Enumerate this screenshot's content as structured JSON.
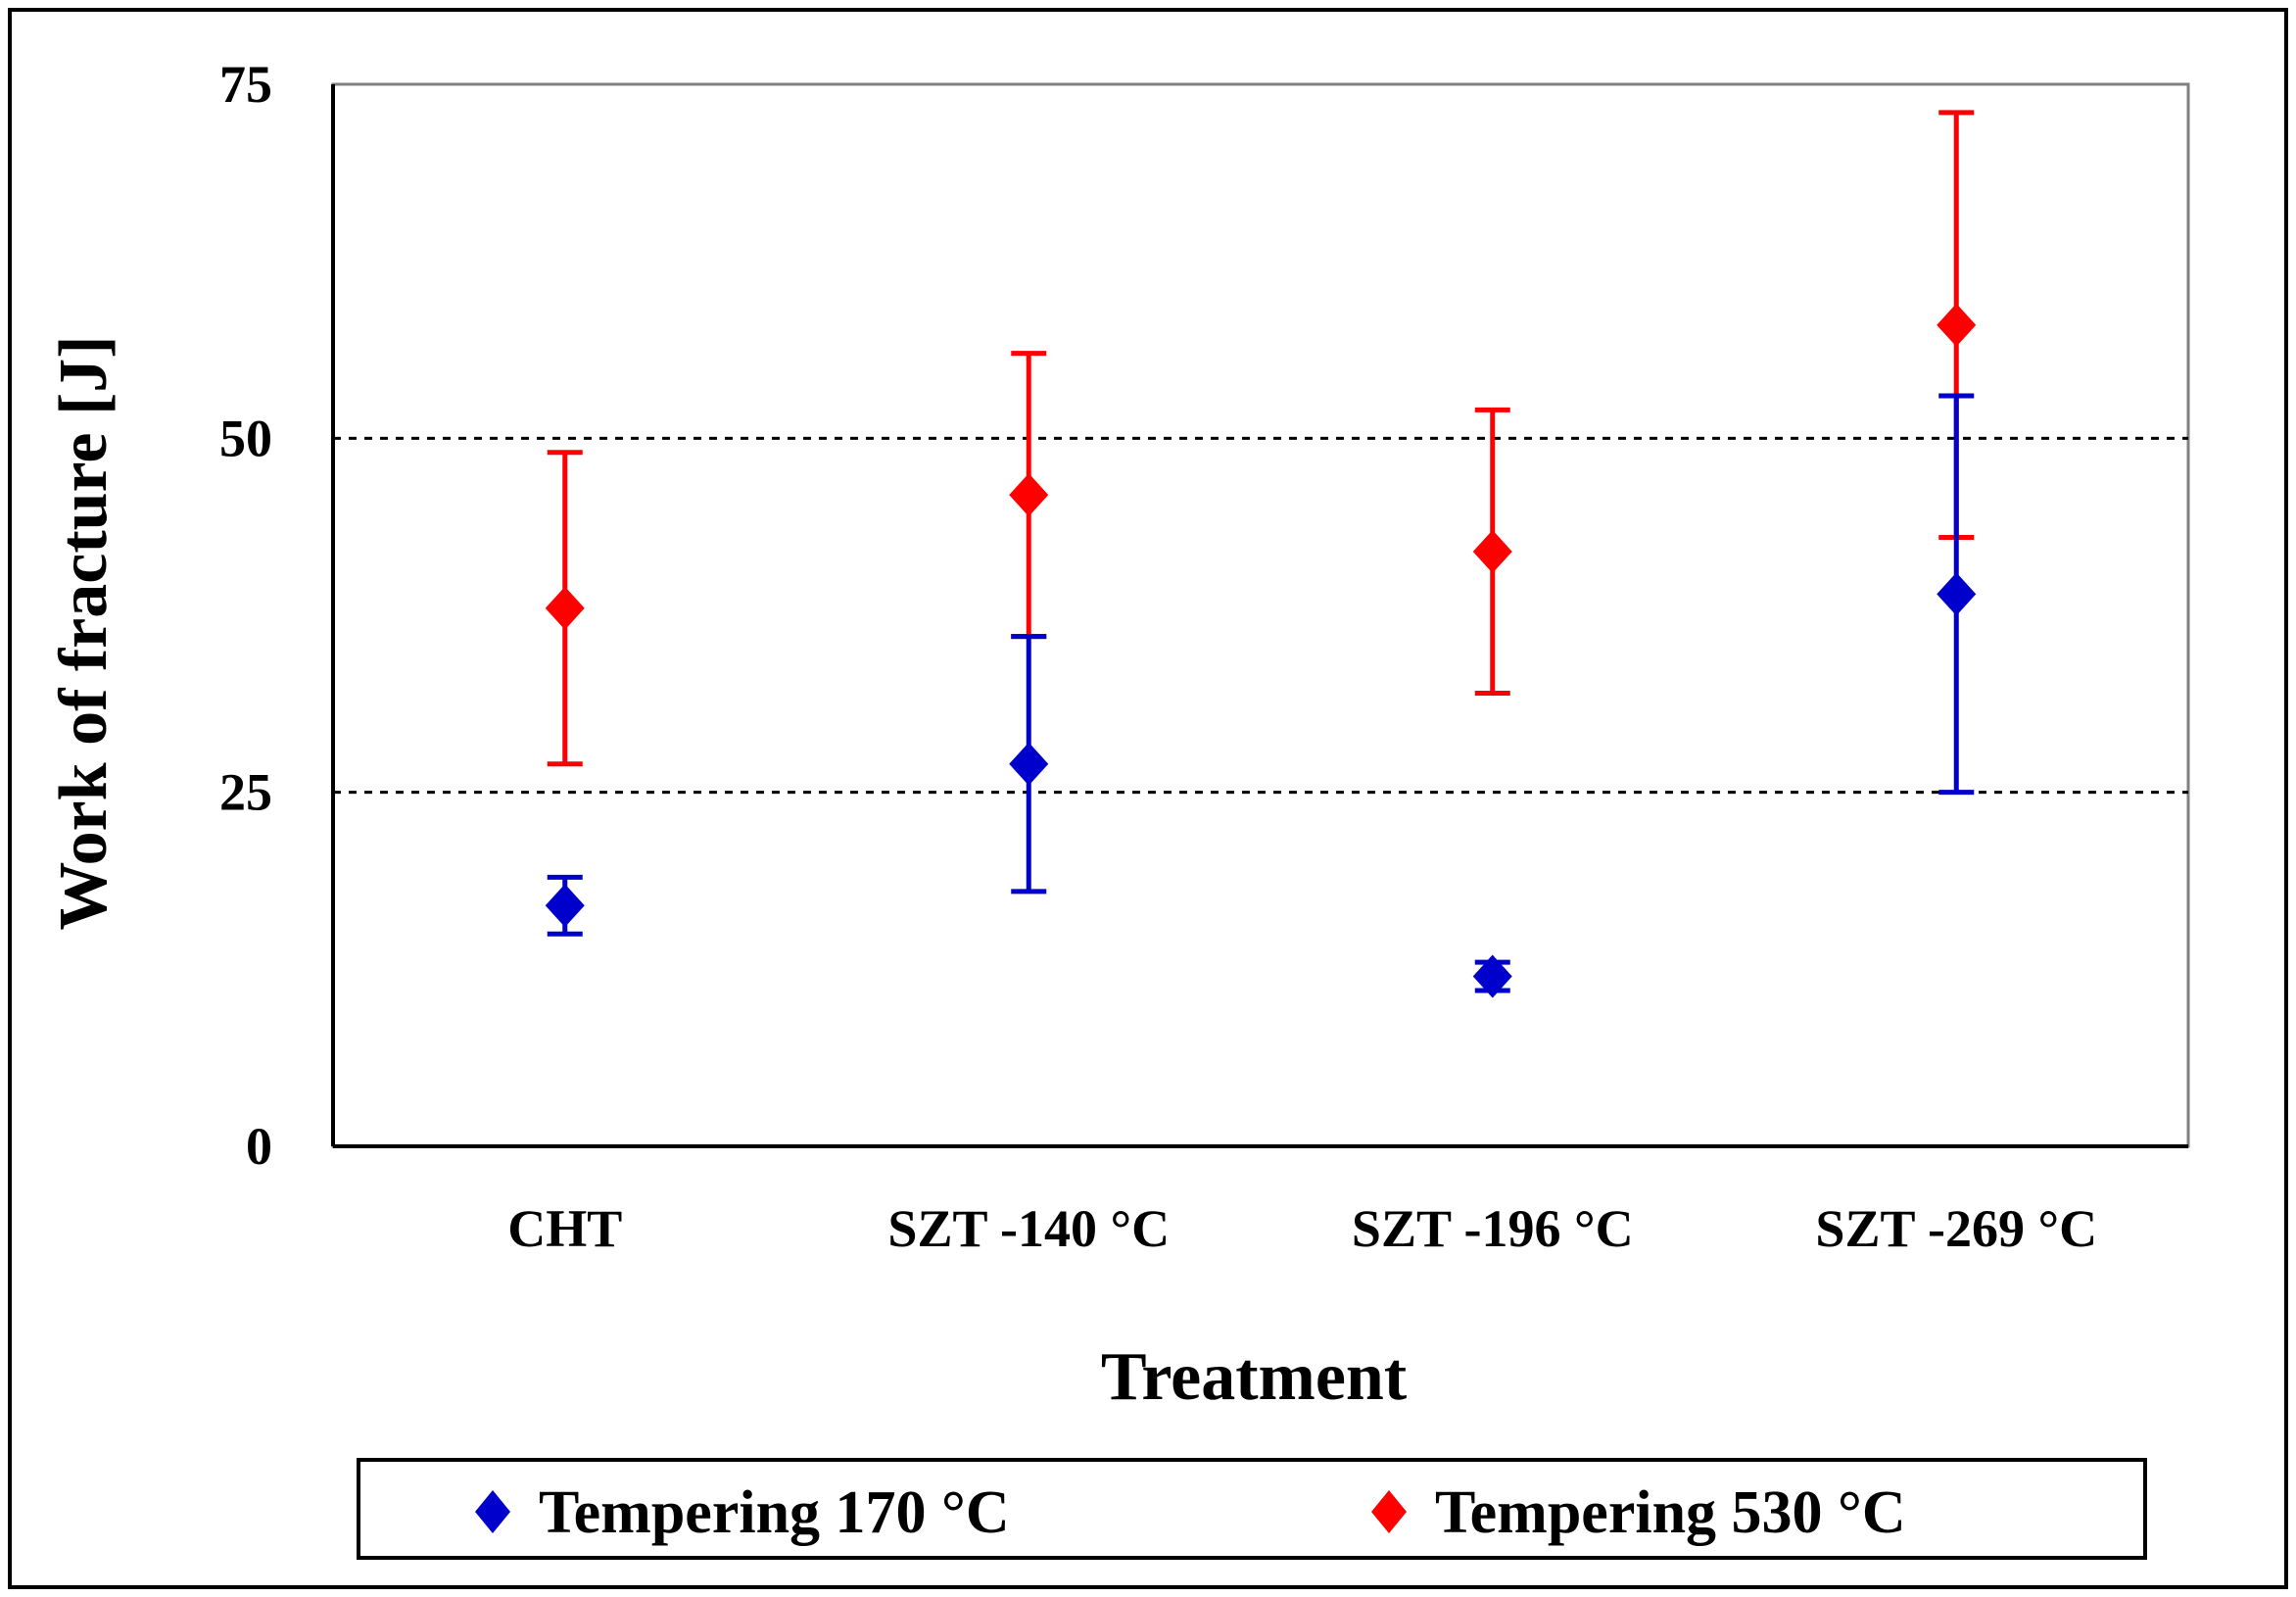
{
  "chart_data": {
    "type": "scatter",
    "title": "",
    "xlabel": "Treatment",
    "ylabel": "Work of fracture [J]",
    "categories": [
      "CHT",
      "SZT  -140 °C",
      "SZT  -196 °C",
      "SZT  -269 °C"
    ],
    "ylim": [
      0,
      75
    ],
    "yticks": [
      "0",
      "25",
      "50",
      "75"
    ],
    "gridlines": [
      25,
      50
    ],
    "legend_position": "bottom",
    "series": [
      {
        "name": "Tempering 170 °C",
        "color": "#0000cc",
        "marker": "diamond",
        "values": [
          17,
          27,
          12,
          39
        ],
        "error_low": [
          15,
          18,
          11,
          25
        ],
        "error_high": [
          19,
          36,
          13,
          53
        ]
      },
      {
        "name": "Tempering 530 °C",
        "color": "#ff0000",
        "marker": "diamond",
        "values": [
          38,
          46,
          42,
          58
        ],
        "error_low": [
          27,
          36,
          32,
          43
        ],
        "error_high": [
          49,
          56,
          52,
          73
        ]
      }
    ]
  }
}
